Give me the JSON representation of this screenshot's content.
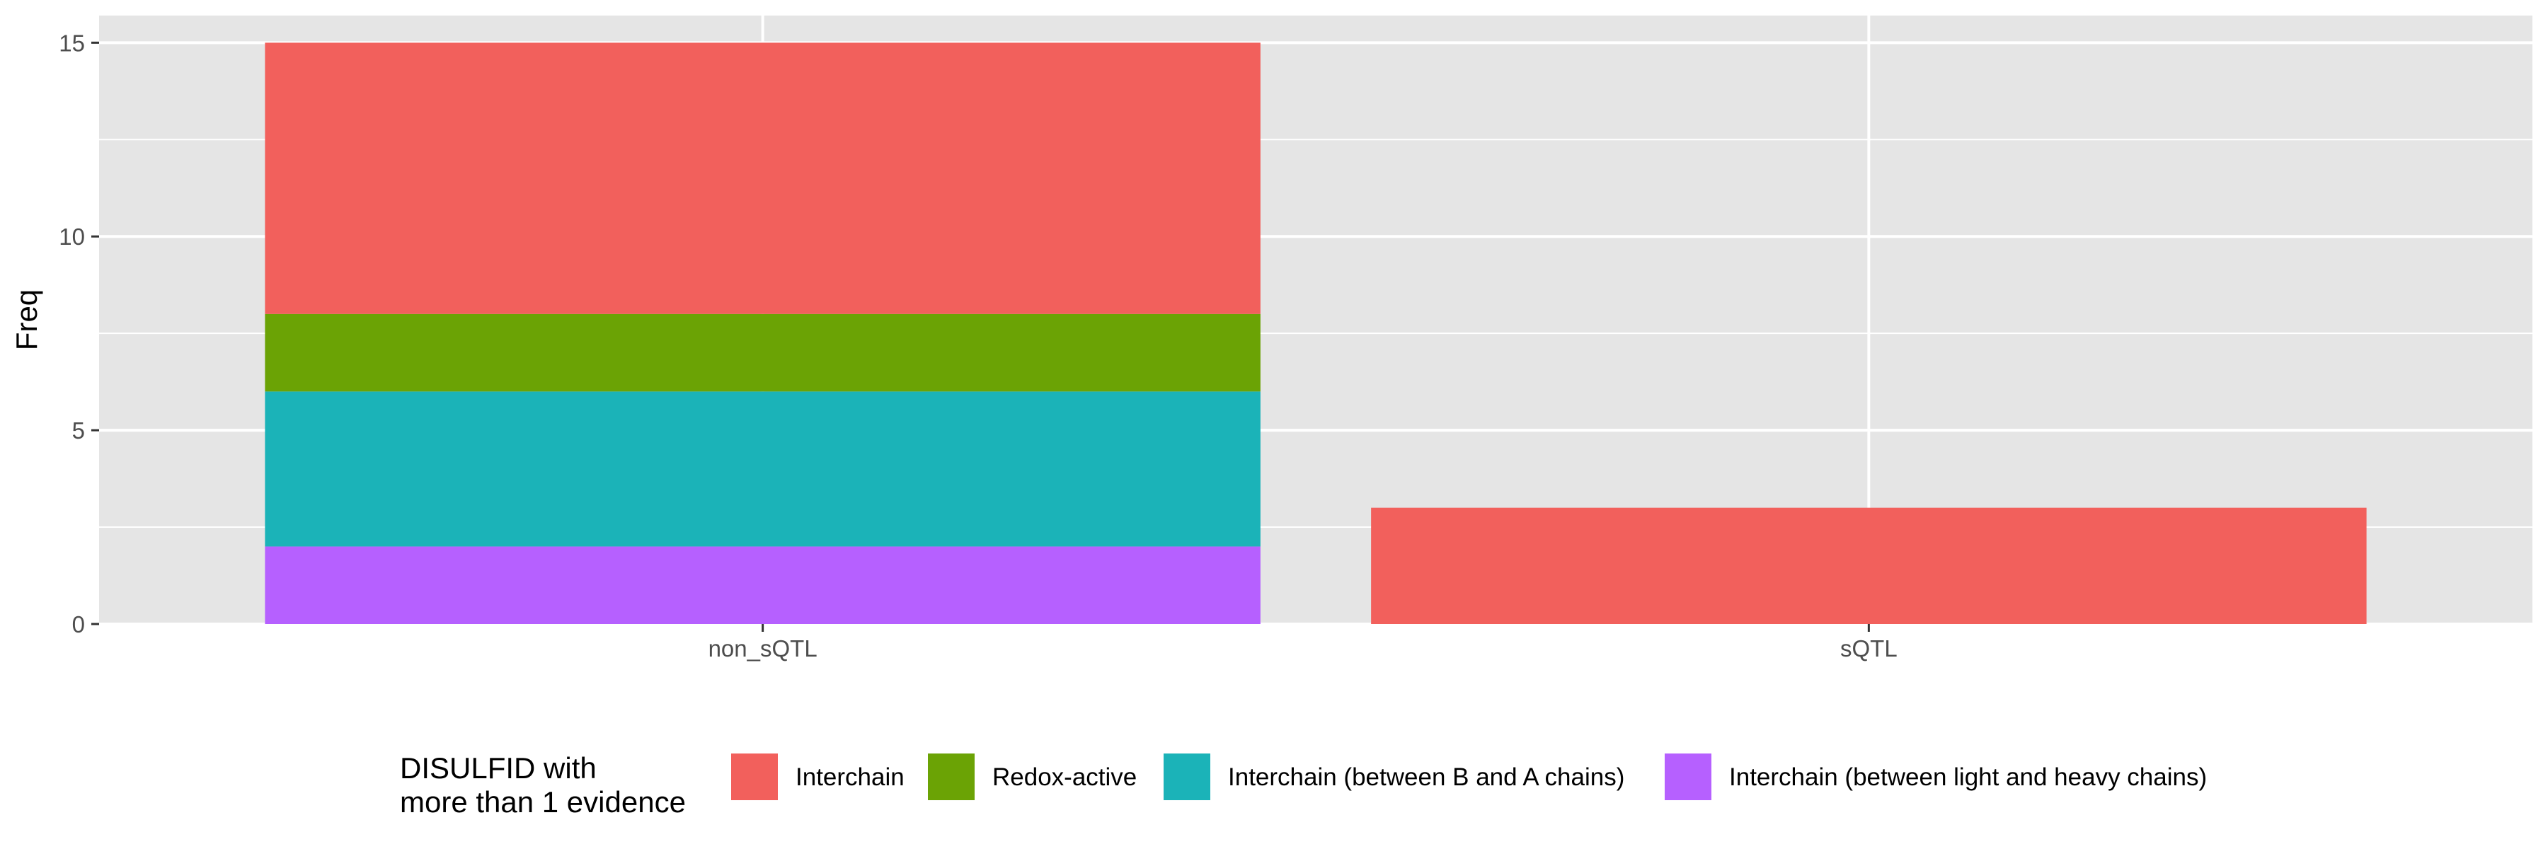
{
  "chart_data": {
    "type": "bar",
    "stacked": true,
    "categories": [
      "non_sQTL",
      "sQTL"
    ],
    "ylabel": "Freq",
    "xlabel": "",
    "ylim": [
      0,
      15.7
    ],
    "yticks": [
      0,
      5,
      10,
      15
    ],
    "grid": true,
    "legend": {
      "position": "bottom",
      "title_lines": [
        "DISULFID with",
        "more than 1 evidence"
      ]
    },
    "series": [
      {
        "name": "Interchain (between light and heavy chains)",
        "color": "#B660FF",
        "values": [
          2,
          0
        ]
      },
      {
        "name": "Interchain (between B and A chains)",
        "color": "#1BB3B8",
        "values": [
          4,
          0
        ]
      },
      {
        "name": "Redox-active",
        "color": "#6BA305",
        "values": [
          2,
          0
        ]
      },
      {
        "name": "Interchain",
        "color": "#F2605C",
        "values": [
          7,
          3
        ]
      }
    ],
    "legend_order": [
      "Interchain",
      "Redox-active",
      "Interchain (between B and A chains)",
      "Interchain (between light and heavy chains)"
    ],
    "colors": {
      "panel": "#E5E5E5",
      "grid": "#FFFFFF",
      "tick": "#4d4d4d"
    }
  }
}
